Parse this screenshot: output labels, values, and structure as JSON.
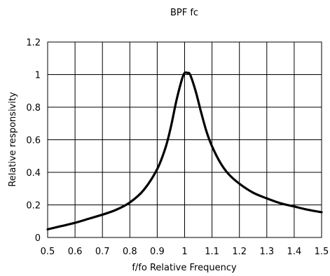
{
  "chart_data": {
    "type": "line",
    "title": "BPF fc",
    "xlabel": "f/fo Relative Frequency",
    "ylabel": "Relative responsivity",
    "xlim": [
      0.5,
      1.5
    ],
    "ylim": [
      0,
      1.2
    ],
    "x_ticks": [
      "0.5",
      "0.6",
      "0.7",
      "0.8",
      "0.9",
      "1",
      "1.1",
      "1.2",
      "1.3",
      "1.4",
      "1.5"
    ],
    "y_ticks": [
      "0",
      "0.2",
      "0.4",
      "0.6",
      "0.8",
      "1",
      "1.2"
    ],
    "grid": true,
    "legend": "none",
    "line_color": "#000000",
    "series": [
      {
        "x": [
          0.5,
          0.55,
          0.6,
          0.65,
          0.7,
          0.75,
          0.8,
          0.85,
          0.9,
          0.93,
          0.95,
          0.97,
          0.99,
          1.0,
          1.01,
          1.02,
          1.04,
          1.06,
          1.08,
          1.1,
          1.13,
          1.16,
          1.2,
          1.25,
          1.3,
          1.35,
          1.4,
          1.45,
          1.5
        ],
        "y": [
          0.05,
          0.07,
          0.09,
          0.115,
          0.14,
          0.17,
          0.215,
          0.29,
          0.42,
          0.55,
          0.68,
          0.84,
          0.97,
          1.01,
          1.01,
          1.0,
          0.9,
          0.77,
          0.65,
          0.56,
          0.46,
          0.39,
          0.33,
          0.275,
          0.24,
          0.21,
          0.19,
          0.17,
          0.155
        ]
      }
    ]
  }
}
